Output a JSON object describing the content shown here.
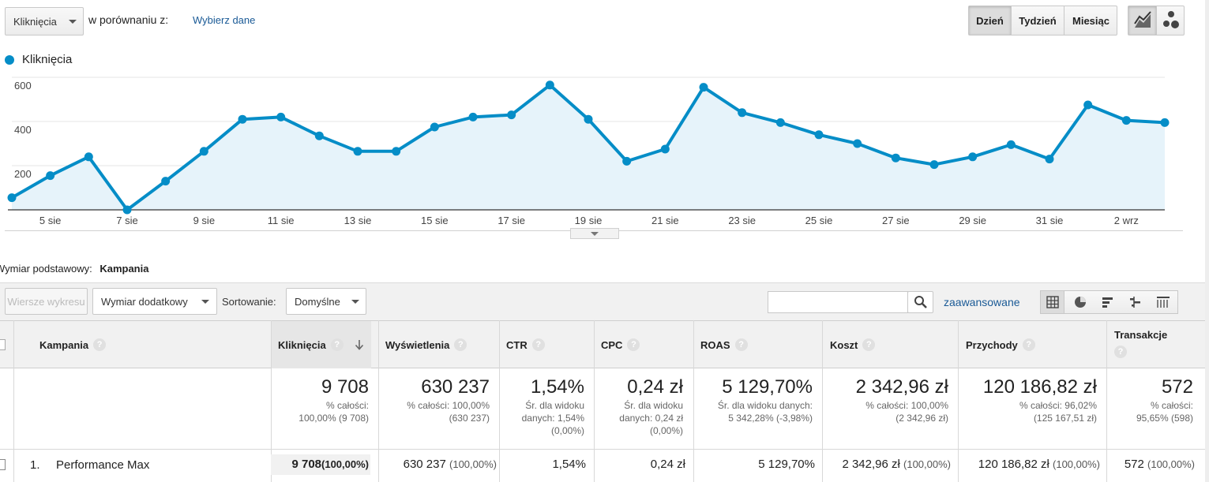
{
  "toolbar": {
    "metric_select": "Kliknięcia",
    "compare_label": "w porównaniu z:",
    "compare_link": "Wybierz dane",
    "granularity": [
      "Dzień",
      "Tydzień",
      "Miesiąc"
    ],
    "granularity_active": "Dzień",
    "chart_type_icons": [
      "line-chart-icon",
      "motion-chart-icon"
    ]
  },
  "chart_data": {
    "type": "area",
    "legend": "Kliknięcia",
    "color": "#058dc7",
    "fill": "#e6f3fa",
    "ylim": [
      0,
      600
    ],
    "yticks": [
      "600",
      "400",
      "200"
    ],
    "xtick_labels": [
      "5 sie",
      "7 sie",
      "9 sie",
      "11 sie",
      "13 sie",
      "15 sie",
      "17 sie",
      "19 sie",
      "21 sie",
      "23 sie",
      "25 sie",
      "27 sie",
      "29 sie",
      "31 sie",
      "2 wrz"
    ],
    "x": [
      "4 sie",
      "5 sie",
      "6 sie",
      "7 sie",
      "8 sie",
      "9 sie",
      "10 sie",
      "11 sie",
      "12 sie",
      "13 sie",
      "14 sie",
      "15 sie",
      "16 sie",
      "17 sie",
      "18 sie",
      "19 sie",
      "20 sie",
      "21 sie",
      "22 sie",
      "23 sie",
      "24 sie",
      "25 sie",
      "26 sie",
      "27 sie",
      "28 sie",
      "29 sie",
      "30 sie",
      "31 sie",
      "1 wrz",
      "2 wrz",
      "3 wrz"
    ],
    "values": [
      55,
      155,
      240,
      0,
      130,
      265,
      410,
      420,
      335,
      265,
      265,
      375,
      420,
      430,
      565,
      410,
      220,
      275,
      555,
      440,
      395,
      340,
      300,
      235,
      205,
      240,
      295,
      230,
      475,
      405,
      395
    ]
  },
  "dimension": {
    "label": "Wymiar podstawowy:",
    "value": "Kampania"
  },
  "controls": {
    "plot_rows": "Wiersze wykresu",
    "secondary_dimension": "Wymiar dodatkowy",
    "sort_label": "Sortowanie:",
    "sort_value": "Domyślne",
    "search_placeholder": "",
    "advanced": "zaawansowane",
    "view_icons": [
      "table-view-icon",
      "pie-view-icon",
      "bar-view-icon",
      "comparison-view-icon",
      "pivot-view-icon"
    ]
  },
  "table": {
    "columns": {
      "campaign": "Kampania",
      "clicks": "Kliknięcia",
      "impressions": "Wyświetlenia",
      "ctr": "CTR",
      "cpc": "CPC",
      "roas": "ROAS",
      "cost": "Koszt",
      "revenue": "Przychody",
      "transactions": "Transakcje"
    },
    "totals": {
      "clicks": {
        "value": "9 708",
        "l1": "% całości:",
        "l2": "100,00% (9 708)",
        "l3": ""
      },
      "impressions": {
        "value": "630 237",
        "l1": "% całości: 100,00%",
        "l2": "(630 237)",
        "l3": ""
      },
      "ctr": {
        "value": "1,54%",
        "l1": "Śr. dla widoku",
        "l2": "danych: 1,54%",
        "l3": "(0,00%)"
      },
      "cpc": {
        "value": "0,24 zł",
        "l1": "Śr. dla widoku",
        "l2": "danych: 0,24 zł",
        "l3": "(0,00%)"
      },
      "roas": {
        "value": "5 129,70%",
        "l1": "Śr. dla widoku danych:",
        "l2": "5 342,28% (-3,98%)",
        "l3": ""
      },
      "cost": {
        "value": "2 342,96 zł",
        "l1": "% całości: 100,00%",
        "l2": "(2 342,96 zł)",
        "l3": ""
      },
      "revenue": {
        "value": "120 186,82 zł",
        "l1": "% całości: 96,02%",
        "l2": "(125 167,51 zł)",
        "l3": ""
      },
      "transactions": {
        "value": "572",
        "l1": "% całości:",
        "l2": "95,65% (598)",
        "l3": ""
      }
    },
    "rows": [
      {
        "index": "1.",
        "campaign": "Performance Max",
        "clicks": "9 708",
        "clicks_pct": "(100,00%)",
        "impressions": "630 237",
        "impressions_pct": "(100,00%)",
        "ctr": "1,54%",
        "cpc": "0,24 zł",
        "roas": "5 129,70%",
        "cost": "2 342,96 zł",
        "cost_pct": "(100,00%)",
        "revenue": "120 186,82 zł",
        "revenue_pct": "(100,00%)",
        "transactions": "572",
        "transactions_pct": "(100,00%)"
      }
    ]
  }
}
